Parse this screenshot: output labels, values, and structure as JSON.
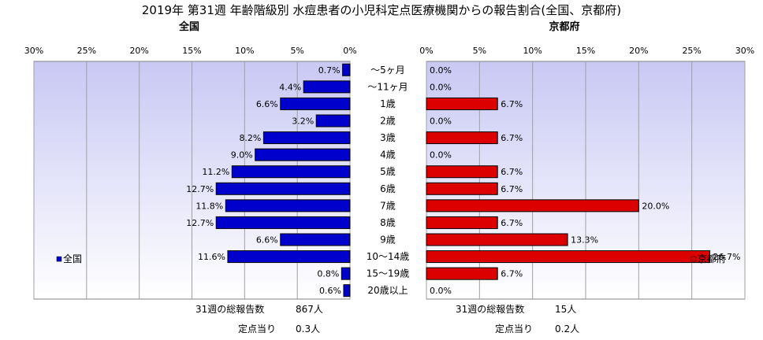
{
  "title": "2019年 第31週 年齢階級別 水痘患者の小児科定点医療機関からの報告割合(全国、京都府)",
  "chart_data": [
    {
      "type": "bar",
      "orientation": "horizontal",
      "subtitle": "全国",
      "categories": [
        "～5ヶ月",
        "～11ヶ月",
        "1歳",
        "2歳",
        "3歳",
        "4歳",
        "5歳",
        "6歳",
        "7歳",
        "8歳",
        "9歳",
        "10～14歳",
        "15～19歳",
        "20歳以上"
      ],
      "series": [
        {
          "name": "全国",
          "values": [
            0.7,
            4.4,
            6.6,
            3.2,
            8.2,
            9.0,
            11.2,
            12.7,
            11.8,
            12.7,
            6.6,
            11.6,
            0.8,
            0.6
          ],
          "labels": [
            "0.7%",
            "4.4%",
            "6.6%",
            "3.2%",
            "8.2%",
            "9.0%",
            "11.2%",
            "12.7%",
            "11.8%",
            "12.7%",
            "6.6%",
            "11.6%",
            "0.8%",
            "0.6%"
          ],
          "color": "#0000cc"
        }
      ],
      "xlim": [
        0,
        30
      ],
      "x_reversed": true,
      "ticks": [
        "30%",
        "25%",
        "20%",
        "15%",
        "10%",
        "5%",
        "0%"
      ],
      "grid": true,
      "legend": "bottom-left",
      "plot_color_top": "#c8c8f4",
      "plot_color_bottom": "#ffffff"
    },
    {
      "type": "bar",
      "orientation": "horizontal",
      "subtitle": "京都府",
      "categories": [
        "～5ヶ月",
        "～11ヶ月",
        "1歳",
        "2歳",
        "3歳",
        "4歳",
        "5歳",
        "6歳",
        "7歳",
        "8歳",
        "9歳",
        "10～14歳",
        "15～19歳",
        "20歳以上"
      ],
      "series": [
        {
          "name": "京都府",
          "values": [
            0.0,
            0.0,
            6.7,
            0.0,
            6.7,
            0.0,
            6.7,
            6.7,
            20.0,
            6.7,
            13.3,
            26.7,
            6.7,
            0.0
          ],
          "labels": [
            "0.0%",
            "0.0%",
            "6.7%",
            "0.0%",
            "6.7%",
            "0.0%",
            "6.7%",
            "6.7%",
            "20.0%",
            "6.7%",
            "13.3%",
            "26.7%",
            "6.7%",
            "0.0%"
          ],
          "color": "#dd0000"
        }
      ],
      "xlim": [
        0,
        30
      ],
      "ticks": [
        "0%",
        "5%",
        "10%",
        "15%",
        "20%",
        "25%",
        "30%"
      ],
      "grid": true,
      "legend": "bottom-right",
      "plot_color_top": "#c8c8f4",
      "plot_color_bottom": "#ffffff"
    }
  ],
  "footer": {
    "left_total_label": "31週の総報告数",
    "left_total_value": "867人",
    "left_per_label": "定点当り",
    "left_per_value": "0.3人",
    "right_total_label": "31週の総報告数",
    "right_total_value": "15人",
    "right_per_label": "定点当り",
    "right_per_value": "0.2人"
  }
}
